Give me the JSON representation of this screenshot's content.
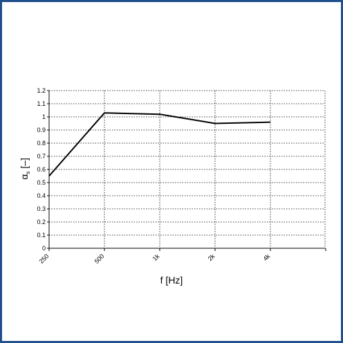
{
  "chart_data": {
    "type": "line",
    "categories": [
      "250",
      "500",
      "1k",
      "2k",
      "4k"
    ],
    "series": [
      {
        "values": [
          0.55,
          1.03,
          1.02,
          0.95,
          0.96
        ]
      }
    ],
    "xlabel": "f [Hz]",
    "ylabel": "α_s [–]",
    "ylim": [
      0,
      1.2
    ],
    "yticks": [
      "0",
      "0.1",
      "0.2",
      "0.3",
      "0.4",
      "0.5",
      "0.6",
      "0.7",
      "0.8",
      "0.9",
      "1",
      "1.1",
      "1.2"
    ],
    "grid": true,
    "colors": {
      "frame": "#1f4e8c",
      "line": "#000000",
      "grid": "#000000"
    }
  }
}
